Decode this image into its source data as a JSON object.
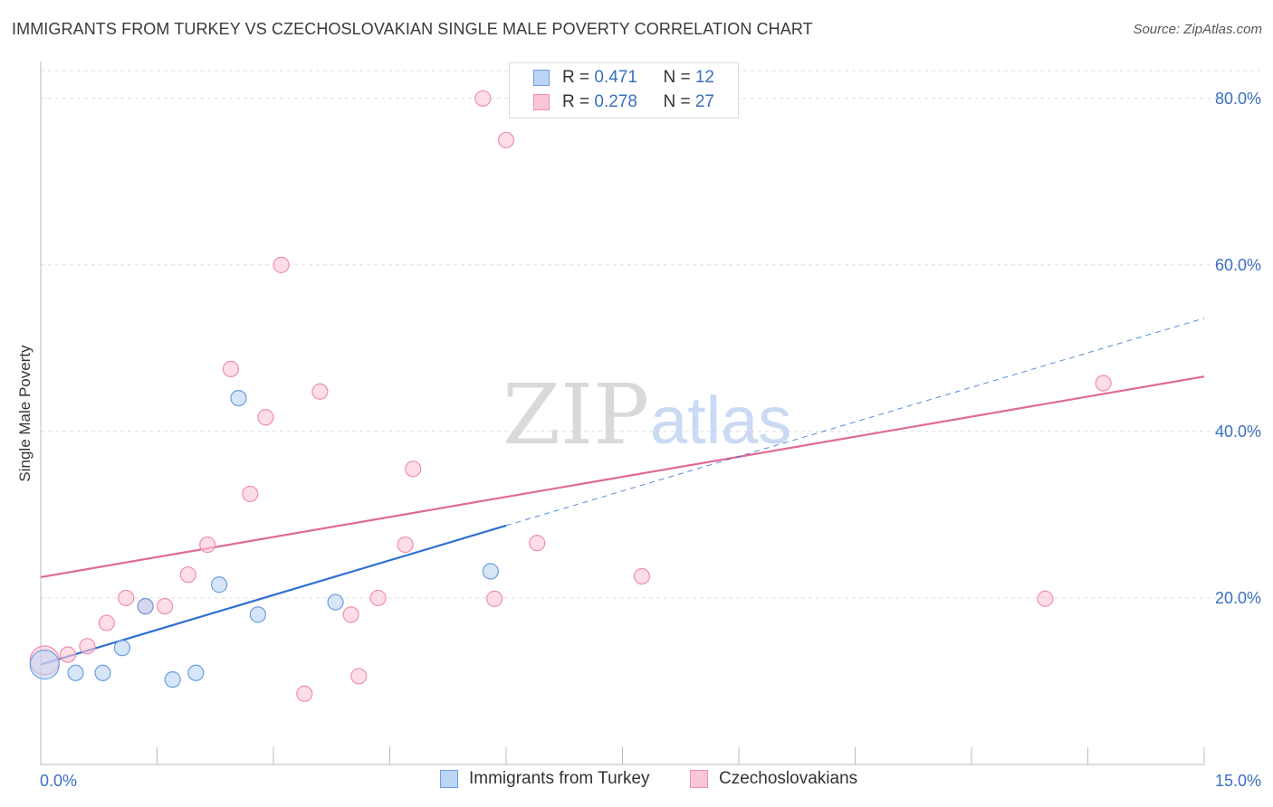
{
  "header": {
    "title": "IMMIGRANTS FROM TURKEY VS CZECHOSLOVAKIAN SINGLE MALE POVERTY CORRELATION CHART",
    "source": "Source: ZipAtlas.com"
  },
  "watermark": {
    "part1": "ZIP",
    "part2": "atlas"
  },
  "legend_top": {
    "rows": [
      {
        "r_label": "R = ",
        "r_value": "0.471",
        "n_label": "N = ",
        "n_value": "12"
      },
      {
        "r_label": "R = ",
        "r_value": "0.278",
        "n_label": "N = ",
        "n_value": "27"
      }
    ]
  },
  "colors": {
    "blue_fill": "#bcd4f5",
    "blue_stroke": "#6a9ee0",
    "blue_line": "#2f6fd0",
    "pink_fill": "#fbc6d6",
    "pink_stroke": "#ef8fae",
    "pink_line": "#e06a92",
    "axis_label": "#3a70c2",
    "grid": "#dcdcdc"
  },
  "chart_data": {
    "type": "scatter",
    "title": "IMMIGRANTS FROM TURKEY VS CZECHOSLOVAKIAN SINGLE MALE POVERTY CORRELATION CHART",
    "xlabel": "",
    "ylabel": "Single Male Poverty",
    "xlim": [
      0,
      15
    ],
    "ylim": [
      0,
      84
    ],
    "x_tick_labels": [
      "0.0%",
      "15.0%"
    ],
    "y_ticks": [
      20,
      40,
      60,
      80
    ],
    "y_tick_labels": [
      "20.0%",
      "40.0%",
      "60.0%",
      "80.0%"
    ],
    "grid": true,
    "legend_position": "bottom",
    "series": [
      {
        "name": "Immigrants from Turkey",
        "r": 0.471,
        "n": 12,
        "points": [
          {
            "x": 0.05,
            "y": 12.0,
            "big": true
          },
          {
            "x": 0.45,
            "y": 11.0
          },
          {
            "x": 0.8,
            "y": 11.0
          },
          {
            "x": 1.05,
            "y": 14.0
          },
          {
            "x": 1.35,
            "y": 19.0
          },
          {
            "x": 1.7,
            "y": 10.2
          },
          {
            "x": 2.0,
            "y": 11.0
          },
          {
            "x": 2.3,
            "y": 21.6
          },
          {
            "x": 2.55,
            "y": 44.0
          },
          {
            "x": 2.8,
            "y": 18.0
          },
          {
            "x": 3.8,
            "y": 19.5
          },
          {
            "x": 5.8,
            "y": 23.2
          }
        ],
        "trend_solid": {
          "x0": 0.0,
          "y0": 12.0,
          "x1": 6.0,
          "y1": 28.7
        },
        "trend_dashed": {
          "x0": 6.0,
          "y0": 28.7,
          "x1": 15.0,
          "y1": 53.6
        }
      },
      {
        "name": "Czechoslovakians",
        "r": 0.278,
        "n": 27,
        "points": [
          {
            "x": 0.05,
            "y": 12.5,
            "big": true
          },
          {
            "x": 0.35,
            "y": 13.2
          },
          {
            "x": 0.6,
            "y": 14.2
          },
          {
            "x": 0.85,
            "y": 17.0
          },
          {
            "x": 1.1,
            "y": 20.0
          },
          {
            "x": 1.35,
            "y": 19.0
          },
          {
            "x": 1.6,
            "y": 19.0
          },
          {
            "x": 1.9,
            "y": 22.8
          },
          {
            "x": 2.15,
            "y": 26.4
          },
          {
            "x": 2.45,
            "y": 47.5
          },
          {
            "x": 2.7,
            "y": 32.5
          },
          {
            "x": 2.9,
            "y": 41.7
          },
          {
            "x": 3.1,
            "y": 60.0
          },
          {
            "x": 3.4,
            "y": 8.5
          },
          {
            "x": 3.6,
            "y": 44.8
          },
          {
            "x": 4.0,
            "y": 18.0
          },
          {
            "x": 4.1,
            "y": 10.6
          },
          {
            "x": 4.35,
            "y": 20.0
          },
          {
            "x": 4.7,
            "y": 26.4
          },
          {
            "x": 4.8,
            "y": 35.5
          },
          {
            "x": 5.7,
            "y": 80.0
          },
          {
            "x": 5.85,
            "y": 19.9
          },
          {
            "x": 6.0,
            "y": 75.0
          },
          {
            "x": 6.4,
            "y": 26.6
          },
          {
            "x": 7.75,
            "y": 22.6
          },
          {
            "x": 12.95,
            "y": 19.9
          },
          {
            "x": 13.7,
            "y": 45.8
          }
        ],
        "trend_solid": {
          "x0": 0.0,
          "y0": 22.5,
          "x1": 15.0,
          "y1": 46.6
        }
      }
    ]
  }
}
